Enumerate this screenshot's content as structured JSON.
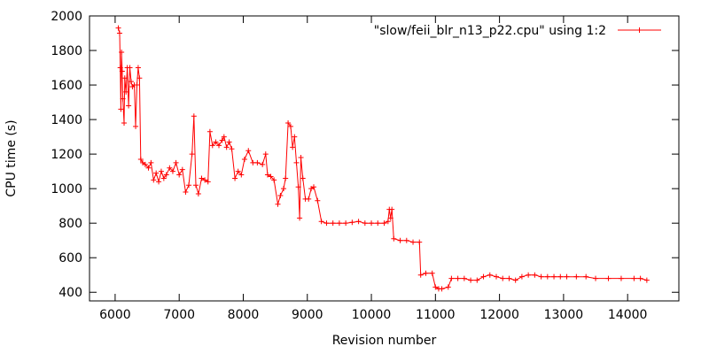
{
  "chart_data": {
    "type": "line",
    "title": "",
    "xlabel": "Revision number",
    "ylabel": "CPU time (s)",
    "xlim": [
      5600,
      14800
    ],
    "ylim": [
      350,
      2000
    ],
    "xticks": [
      6000,
      7000,
      8000,
      9000,
      10000,
      11000,
      12000,
      13000,
      14000
    ],
    "yticks": [
      400,
      600,
      800,
      1000,
      1200,
      1400,
      1600,
      1800,
      2000
    ],
    "legend_position": "top-right",
    "grid": false,
    "series": [
      {
        "name": "\"slow/feii_blr_n13_p22.cpu\" using 1:2",
        "color": "#ff0000",
        "marker": "plus",
        "points": [
          [
            6050,
            1930
          ],
          [
            6070,
            1900
          ],
          [
            6080,
            1700
          ],
          [
            6090,
            1460
          ],
          [
            6100,
            1790
          ],
          [
            6110,
            1680
          ],
          [
            6120,
            1520
          ],
          [
            6140,
            1380
          ],
          [
            6150,
            1640
          ],
          [
            6170,
            1560
          ],
          [
            6190,
            1700
          ],
          [
            6210,
            1480
          ],
          [
            6230,
            1700
          ],
          [
            6250,
            1620
          ],
          [
            6270,
            1590
          ],
          [
            6300,
            1600
          ],
          [
            6320,
            1360
          ],
          [
            6340,
            1600
          ],
          [
            6360,
            1700
          ],
          [
            6380,
            1640
          ],
          [
            6400,
            1170
          ],
          [
            6430,
            1150
          ],
          [
            6470,
            1140
          ],
          [
            6520,
            1120
          ],
          [
            6560,
            1150
          ],
          [
            6600,
            1050
          ],
          [
            6640,
            1090
          ],
          [
            6680,
            1040
          ],
          [
            6720,
            1100
          ],
          [
            6760,
            1060
          ],
          [
            6800,
            1080
          ],
          [
            6850,
            1120
          ],
          [
            6900,
            1100
          ],
          [
            6950,
            1150
          ],
          [
            7000,
            1080
          ],
          [
            7050,
            1110
          ],
          [
            7100,
            980
          ],
          [
            7150,
            1020
          ],
          [
            7200,
            1200
          ],
          [
            7230,
            1420
          ],
          [
            7260,
            1020
          ],
          [
            7300,
            970
          ],
          [
            7350,
            1060
          ],
          [
            7400,
            1050
          ],
          [
            7450,
            1040
          ],
          [
            7480,
            1330
          ],
          [
            7520,
            1250
          ],
          [
            7570,
            1270
          ],
          [
            7620,
            1250
          ],
          [
            7670,
            1280
          ],
          [
            7700,
            1300
          ],
          [
            7740,
            1240
          ],
          [
            7780,
            1270
          ],
          [
            7820,
            1230
          ],
          [
            7870,
            1060
          ],
          [
            7920,
            1100
          ],
          [
            7970,
            1080
          ],
          [
            8020,
            1170
          ],
          [
            8080,
            1220
          ],
          [
            8150,
            1150
          ],
          [
            8220,
            1150
          ],
          [
            8300,
            1140
          ],
          [
            8350,
            1200
          ],
          [
            8380,
            1080
          ],
          [
            8430,
            1070
          ],
          [
            8480,
            1050
          ],
          [
            8540,
            910
          ],
          [
            8580,
            960
          ],
          [
            8630,
            1000
          ],
          [
            8660,
            1060
          ],
          [
            8700,
            1380
          ],
          [
            8740,
            1360
          ],
          [
            8770,
            1240
          ],
          [
            8800,
            1300
          ],
          [
            8830,
            1150
          ],
          [
            8860,
            1010
          ],
          [
            8880,
            830
          ],
          [
            8900,
            1180
          ],
          [
            8930,
            1060
          ],
          [
            8970,
            940
          ],
          [
            9020,
            940
          ],
          [
            9060,
            1000
          ],
          [
            9100,
            1010
          ],
          [
            9160,
            930
          ],
          [
            9220,
            810
          ],
          [
            9300,
            800
          ],
          [
            9400,
            800
          ],
          [
            9500,
            800
          ],
          [
            9600,
            800
          ],
          [
            9700,
            805
          ],
          [
            9800,
            810
          ],
          [
            9900,
            800
          ],
          [
            10000,
            800
          ],
          [
            10100,
            800
          ],
          [
            10200,
            800
          ],
          [
            10260,
            810
          ],
          [
            10280,
            880
          ],
          [
            10300,
            830
          ],
          [
            10320,
            880
          ],
          [
            10350,
            710
          ],
          [
            10450,
            700
          ],
          [
            10550,
            700
          ],
          [
            10650,
            690
          ],
          [
            10750,
            690
          ],
          [
            10770,
            500
          ],
          [
            10850,
            510
          ],
          [
            10950,
            510
          ],
          [
            11000,
            430
          ],
          [
            11050,
            420
          ],
          [
            11100,
            420
          ],
          [
            11200,
            430
          ],
          [
            11250,
            480
          ],
          [
            11350,
            480
          ],
          [
            11450,
            480
          ],
          [
            11550,
            470
          ],
          [
            11650,
            470
          ],
          [
            11750,
            490
          ],
          [
            11850,
            500
          ],
          [
            11950,
            490
          ],
          [
            12050,
            480
          ],
          [
            12150,
            480
          ],
          [
            12250,
            470
          ],
          [
            12350,
            490
          ],
          [
            12450,
            500
          ],
          [
            12550,
            500
          ],
          [
            12650,
            490
          ],
          [
            12750,
            490
          ],
          [
            12850,
            490
          ],
          [
            12950,
            490
          ],
          [
            13050,
            490
          ],
          [
            13200,
            490
          ],
          [
            13350,
            490
          ],
          [
            13500,
            480
          ],
          [
            13700,
            480
          ],
          [
            13900,
            480
          ],
          [
            14100,
            480
          ],
          [
            14200,
            480
          ],
          [
            14300,
            470
          ]
        ]
      }
    ]
  }
}
